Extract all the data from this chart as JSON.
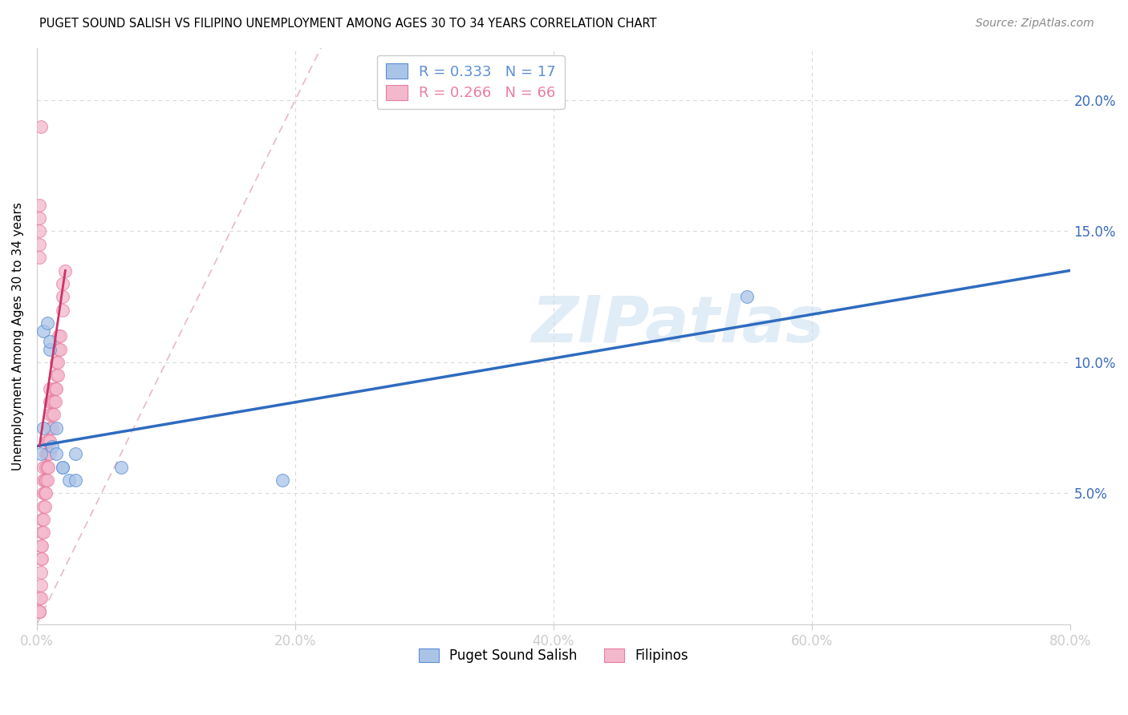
{
  "title": "PUGET SOUND SALISH VS FILIPINO UNEMPLOYMENT AMONG AGES 30 TO 34 YEARS CORRELATION CHART",
  "source": "Source: ZipAtlas.com",
  "ylabel": "Unemployment Among Ages 30 to 34 years",
  "xlim": [
    0.0,
    0.8
  ],
  "ylim": [
    0.0,
    0.22
  ],
  "xticks": [
    0.0,
    0.2,
    0.4,
    0.6,
    0.8
  ],
  "xticklabels": [
    "0.0%",
    "20.0%",
    "40.0%",
    "60.0%",
    "80.0%"
  ],
  "yticks": [
    0.05,
    0.1,
    0.15,
    0.2
  ],
  "yticklabels_right": [
    "5.0%",
    "10.0%",
    "15.0%",
    "20.0%"
  ],
  "legend_entries": [
    {
      "label": "R = 0.333   N = 17",
      "color": "#5b8fd4"
    },
    {
      "label": "R = 0.266   N = 66",
      "color": "#e87ea1"
    }
  ],
  "group1_label": "Puget Sound Salish",
  "group2_label": "Filipinos",
  "group1_color": "#aac4e8",
  "group2_color": "#f4b8cc",
  "group1_edge": "#5b8fd4",
  "group2_edge": "#e87ea1",
  "watermark": "ZIPatlas",
  "background_color": "#ffffff",
  "grid_color": "#d8d8d8",
  "axis_color": "#cccccc",
  "blue_line_color": "#2e6bbf",
  "pink_line_color": "#cc3366",
  "ref_line_color": "#e8b8c8",
  "scatter1_x": [
    0.005,
    0.005,
    0.008,
    0.01,
    0.01,
    0.012,
    0.015,
    0.015,
    0.02,
    0.02,
    0.025,
    0.03,
    0.03,
    0.065,
    0.19,
    0.55,
    0.003
  ],
  "scatter1_y": [
    0.075,
    0.112,
    0.115,
    0.105,
    0.108,
    0.068,
    0.065,
    0.075,
    0.06,
    0.06,
    0.055,
    0.055,
    0.065,
    0.06,
    0.055,
    0.125,
    0.065
  ],
  "scatter2_x": [
    0.002,
    0.002,
    0.002,
    0.002,
    0.003,
    0.003,
    0.003,
    0.003,
    0.003,
    0.004,
    0.004,
    0.004,
    0.004,
    0.005,
    0.005,
    0.005,
    0.005,
    0.005,
    0.005,
    0.006,
    0.006,
    0.006,
    0.007,
    0.007,
    0.007,
    0.007,
    0.008,
    0.008,
    0.008,
    0.008,
    0.009,
    0.009,
    0.009,
    0.01,
    0.01,
    0.01,
    0.01,
    0.01,
    0.01,
    0.012,
    0.012,
    0.012,
    0.013,
    0.013,
    0.013,
    0.014,
    0.014,
    0.015,
    0.015,
    0.015,
    0.016,
    0.016,
    0.017,
    0.017,
    0.018,
    0.018,
    0.02,
    0.02,
    0.02,
    0.022,
    0.002,
    0.002,
    0.002,
    0.002,
    0.002,
    0.003
  ],
  "scatter2_y": [
    0.005,
    0.005,
    0.01,
    0.005,
    0.01,
    0.015,
    0.02,
    0.025,
    0.03,
    0.025,
    0.03,
    0.035,
    0.04,
    0.035,
    0.04,
    0.045,
    0.05,
    0.055,
    0.06,
    0.045,
    0.05,
    0.055,
    0.05,
    0.055,
    0.06,
    0.065,
    0.055,
    0.06,
    0.065,
    0.07,
    0.06,
    0.065,
    0.07,
    0.065,
    0.07,
    0.075,
    0.08,
    0.085,
    0.09,
    0.075,
    0.08,
    0.085,
    0.08,
    0.085,
    0.09,
    0.085,
    0.09,
    0.09,
    0.095,
    0.1,
    0.095,
    0.1,
    0.105,
    0.11,
    0.105,
    0.11,
    0.12,
    0.125,
    0.13,
    0.135,
    0.14,
    0.145,
    0.15,
    0.155,
    0.16,
    0.19
  ],
  "blue_line_x": [
    0.0,
    0.8
  ],
  "blue_line_y": [
    0.068,
    0.135
  ],
  "pink_line_x": [
    0.002,
    0.022
  ],
  "pink_line_y": [
    0.068,
    0.135
  ],
  "ref_line_x": [
    0.0,
    0.22
  ],
  "ref_line_y": [
    0.0,
    0.22
  ]
}
